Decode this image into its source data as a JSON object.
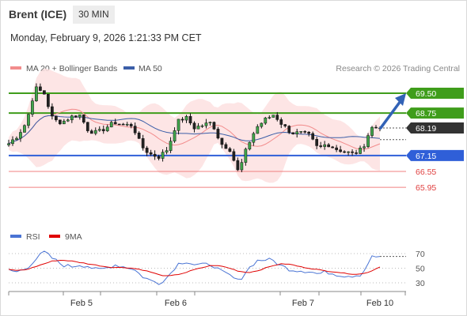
{
  "header": {
    "instrument": "Brent (ICE)",
    "timeframe": "30 MIN",
    "datetime": "Monday, February 9, 2026 1:21:33 PM CET"
  },
  "chart_data": [
    {
      "type": "candlestick",
      "legend": [
        {
          "name": "MA 20 + Bollinger Bands",
          "color": "#f28c8c"
        },
        {
          "name": "MA 50",
          "color": "#3b5ea8"
        }
      ],
      "credit": "Research © 2026 Trading Central",
      "ylim": [
        65.6,
        70.0
      ],
      "levels": [
        {
          "label": "69.50",
          "value": 69.5,
          "color": "#3f9d1b"
        },
        {
          "label": "68.75",
          "value": 68.75,
          "color": "#3f9d1b"
        },
        {
          "label": "68.19",
          "value": 68.19,
          "color": "#333333"
        },
        {
          "label": "67.15",
          "value": 67.15,
          "color": "#2f5fd8"
        },
        {
          "label": "66.55",
          "value": 66.55,
          "color": "#f08080"
        },
        {
          "label": "65.95",
          "value": 65.95,
          "color": "#f08080"
        }
      ],
      "last_price": 68.19,
      "forecast_target": 69.5,
      "x_labels": [
        "Feb 5",
        "Feb 6",
        "Feb 7",
        "Feb 10"
      ],
      "close_path": [
        67.6,
        67.9,
        68.4,
        69.7,
        69.5,
        68.5,
        68.4,
        68.6,
        68.7,
        68.1,
        68.0,
        68.2,
        68.4,
        68.3,
        68.3,
        67.5,
        67.2,
        67.1,
        67.4,
        68.4,
        68.6,
        68.2,
        68.3,
        68.4,
        67.6,
        67.4,
        66.5,
        67.5,
        68.2,
        68.5,
        68.7,
        68.3,
        68.0,
        68.0,
        67.9,
        67.4,
        67.6,
        67.4,
        67.3,
        67.2,
        67.4,
        68.2,
        68.2
      ]
    },
    {
      "type": "line",
      "legend": [
        {
          "name": "RSI",
          "color": "#4a74d4"
        },
        {
          "name": "9MA",
          "color": "#e00000"
        }
      ],
      "y_ticks": [
        70,
        50,
        30
      ],
      "ylim": [
        20,
        80
      ],
      "series": [
        {
          "name": "RSI",
          "values": [
            47,
            45,
            50,
            62,
            72,
            63,
            55,
            52,
            55,
            53,
            47,
            50,
            55,
            52,
            50,
            40,
            33,
            30,
            38,
            55,
            60,
            55,
            54,
            56,
            45,
            40,
            32,
            48,
            60,
            62,
            60,
            52,
            48,
            47,
            46,
            42,
            45,
            42,
            40,
            40,
            42,
            65,
            66
          ]
        },
        {
          "name": "9MA",
          "values": [
            48,
            47,
            48,
            52,
            56,
            60,
            61,
            60,
            58,
            56,
            54,
            52,
            51,
            51,
            50,
            48,
            45,
            41,
            39,
            41,
            44,
            48,
            51,
            54,
            53,
            50,
            46,
            44,
            46,
            50,
            54,
            56,
            55,
            52,
            50,
            48,
            46,
            45,
            43,
            42,
            42,
            46,
            52
          ]
        }
      ]
    }
  ]
}
